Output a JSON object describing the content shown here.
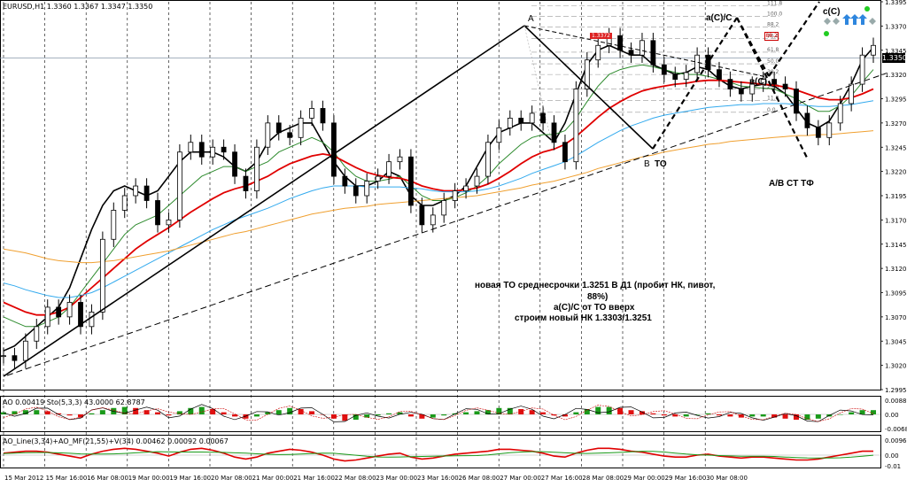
{
  "window": {
    "title_label": "EURUSD,H1  1.3360 1.3367 1.3347 1.3350",
    "current_price": "1.3350"
  },
  "colors": {
    "background": "#ffffff",
    "up_candle": "#000000",
    "down_candle": "#000000",
    "ma_black": "#000000",
    "ma_green": "#2e8b2e",
    "ma_red": "#e00000",
    "ma_blue": "#33aaee",
    "ma_orange": "#f0a030",
    "ao_up": "#1a9a1a",
    "ao_down": "#e01010"
  },
  "chart_data": {
    "type": "line",
    "title": "EURUSD,H1",
    "ohlc_readout": {
      "open": 1.336,
      "high": 1.3367,
      "low": 1.3347,
      "close": 1.335
    },
    "y_ticks": [
      "1.3395",
      "1.3370",
      "1.3345",
      "1.3320",
      "1.3295",
      "1.3270",
      "1.3245",
      "1.3220",
      "1.3195",
      "1.3170",
      "1.3145",
      "1.3120",
      "1.3095",
      "1.3070",
      "1.3045",
      "1.3020",
      "1.2995"
    ],
    "ylim": [
      1.2995,
      1.3395
    ],
    "x_ticks": [
      "15 Mar 2012",
      "15 Mar 16:00",
      "16 Mar 08:00",
      "19 Mar 00:00",
      "19 Mar 16:00",
      "20 Mar 08:00",
      "21 Mar 00:00",
      "21 Mar 16:00",
      "22 Mar 08:00",
      "23 Mar 00:00",
      "23 Mar 16:00",
      "26 Mar 08:00",
      "27 Mar 00:00",
      "27 Mar 16:00",
      "28 Mar 08:00",
      "29 Mar 00:00",
      "29 Mar 16:00",
      "30 Mar 08:00"
    ],
    "close_series": [
      1.303,
      1.3025,
      1.3045,
      1.306,
      1.308,
      1.307,
      1.3085,
      1.306,
      1.3075,
      1.315,
      1.318,
      1.3195,
      1.3205,
      1.319,
      1.3165,
      1.317,
      1.324,
      1.325,
      1.3235,
      1.3245,
      1.324,
      1.3215,
      1.32,
      1.3245,
      1.327,
      1.326,
      1.3255,
      1.3275,
      1.3285,
      1.327,
      1.3215,
      1.3205,
      1.3195,
      1.321,
      1.3215,
      1.323,
      1.3235,
      1.3185,
      1.3165,
      1.3175,
      1.319,
      1.32,
      1.3205,
      1.3215,
      1.325,
      1.3265,
      1.3275,
      1.327,
      1.328,
      1.327,
      1.325,
      1.323,
      1.3305,
      1.3335,
      1.335,
      1.336,
      1.3345,
      1.334,
      1.3355,
      1.333,
      1.332,
      1.3315,
      1.3322,
      1.334,
      1.3325,
      1.3315,
      1.3305,
      1.33,
      1.331,
      1.3315,
      1.331,
      1.3305,
      1.328,
      1.3265,
      1.3255,
      1.327,
      1.329,
      1.331,
      1.334,
      1.335
    ],
    "ma_series": [
      {
        "color": "black",
        "values": [
          1.3035,
          1.304,
          1.305,
          1.306,
          1.307,
          1.308,
          1.31,
          1.313,
          1.316,
          1.3185,
          1.32,
          1.3205,
          1.32,
          1.3195,
          1.32,
          1.3215,
          1.323,
          1.324,
          1.324,
          1.324,
          1.3235,
          1.3225,
          1.322,
          1.323,
          1.325,
          1.326,
          1.3265,
          1.327,
          1.327,
          1.325,
          1.323,
          1.3215,
          1.3205,
          1.3205,
          1.321,
          1.322,
          1.3215,
          1.3195,
          1.3185,
          1.3185,
          1.319,
          1.3195,
          1.3205,
          1.3225,
          1.3245,
          1.326,
          1.3265,
          1.327,
          1.327,
          1.326,
          1.325,
          1.327,
          1.33,
          1.333,
          1.3345,
          1.335,
          1.3345,
          1.334,
          1.334,
          1.333,
          1.3325,
          1.332,
          1.3322,
          1.3328,
          1.3325,
          1.3315,
          1.3308,
          1.3305,
          1.3308,
          1.331,
          1.3308,
          1.33,
          1.3285,
          1.327,
          1.3265,
          1.3272,
          1.329,
          1.331,
          1.3335,
          1.3348
        ]
      },
      {
        "color": "green",
        "values": [
          1.307,
          1.3065,
          1.306,
          1.306,
          1.3065,
          1.307,
          1.308,
          1.3095,
          1.311,
          1.3125,
          1.314,
          1.3155,
          1.3165,
          1.317,
          1.3175,
          1.3185,
          1.3195,
          1.3205,
          1.3215,
          1.322,
          1.3225,
          1.3225,
          1.322,
          1.3225,
          1.323,
          1.324,
          1.3245,
          1.325,
          1.3255,
          1.325,
          1.324,
          1.3225,
          1.3215,
          1.321,
          1.321,
          1.3212,
          1.3215,
          1.3205,
          1.3195,
          1.319,
          1.319,
          1.3193,
          1.3198,
          1.3205,
          1.3215,
          1.3228,
          1.3238,
          1.3248,
          1.3255,
          1.3258,
          1.3258,
          1.3262,
          1.3275,
          1.3292,
          1.3308,
          1.332,
          1.3325,
          1.3328,
          1.333,
          1.3328,
          1.3325,
          1.3322,
          1.332,
          1.332,
          1.3318,
          1.3315,
          1.3312,
          1.3308,
          1.3307,
          1.3306,
          1.3305,
          1.33,
          1.3295,
          1.3288,
          1.3282,
          1.3282,
          1.3288,
          1.3298,
          1.3312,
          1.3325
        ]
      },
      {
        "color": "red",
        "values": [
          1.3085,
          1.308,
          1.3075,
          1.3072,
          1.3072,
          1.3075,
          1.308,
          1.309,
          1.31,
          1.311,
          1.312,
          1.313,
          1.314,
          1.3148,
          1.3155,
          1.3162,
          1.317,
          1.3178,
          1.3185,
          1.3192,
          1.3198,
          1.3202,
          1.3205,
          1.321,
          1.3215,
          1.3222,
          1.3228,
          1.3232,
          1.3236,
          1.3238,
          1.3236,
          1.323,
          1.3224,
          1.3219,
          1.3216,
          1.3214,
          1.3213,
          1.321,
          1.3205,
          1.3202,
          1.32,
          1.32,
          1.3201,
          1.3203,
          1.3207,
          1.3213,
          1.322,
          1.3228,
          1.3235,
          1.324,
          1.3243,
          1.3248,
          1.3256,
          1.3266,
          1.3276,
          1.3285,
          1.3292,
          1.3298,
          1.3303,
          1.3306,
          1.3308,
          1.331,
          1.3311,
          1.3313,
          1.3314,
          1.3314,
          1.3313,
          1.3312,
          1.3311,
          1.331,
          1.3309,
          1.3307,
          1.3304,
          1.33,
          1.3296,
          1.3294,
          1.3294,
          1.3296,
          1.33,
          1.3305
        ]
      },
      {
        "color": "blue",
        "values": [
          1.3105,
          1.3102,
          1.3098,
          1.3095,
          1.3092,
          1.309,
          1.309,
          1.3092,
          1.3095,
          1.31,
          1.3106,
          1.3112,
          1.3118,
          1.3124,
          1.313,
          1.3136,
          1.3142,
          1.3148,
          1.3154,
          1.316,
          1.3165,
          1.317,
          1.3174,
          1.3178,
          1.3182,
          1.3187,
          1.3192,
          1.3196,
          1.32,
          1.3203,
          1.3205,
          1.3205,
          1.3205,
          1.3204,
          1.3204,
          1.3204,
          1.3204,
          1.3203,
          1.3202,
          1.32,
          1.3199,
          1.3199,
          1.3199,
          1.32,
          1.3202,
          1.3205,
          1.3209,
          1.3213,
          1.3218,
          1.3222,
          1.3226,
          1.323,
          1.3236,
          1.3243,
          1.325,
          1.3256,
          1.3262,
          1.3267,
          1.3271,
          1.3275,
          1.3278,
          1.328,
          1.3282,
          1.3284,
          1.3286,
          1.3287,
          1.3288,
          1.3289,
          1.3289,
          1.329,
          1.329,
          1.329,
          1.3289,
          1.3288,
          1.3287,
          1.3287,
          1.3288,
          1.3289,
          1.3291,
          1.3293
        ]
      },
      {
        "color": "orange",
        "values": [
          1.314,
          1.3138,
          1.3136,
          1.3133,
          1.313,
          1.3128,
          1.3127,
          1.3126,
          1.3126,
          1.3127,
          1.3128,
          1.313,
          1.3132,
          1.3134,
          1.3136,
          1.3138,
          1.3141,
          1.3144,
          1.3147,
          1.315,
          1.3153,
          1.3156,
          1.3158,
          1.3161,
          1.3164,
          1.3167,
          1.317,
          1.3173,
          1.3176,
          1.3178,
          1.318,
          1.3182,
          1.3183,
          1.3184,
          1.3186,
          1.3187,
          1.3188,
          1.3189,
          1.319,
          1.3191,
          1.3192,
          1.3193,
          1.3194,
          1.3195,
          1.3197,
          1.3199,
          1.3201,
          1.3203,
          1.3206,
          1.3208,
          1.321,
          1.3213,
          1.3216,
          1.3219,
          1.3223,
          1.3226,
          1.3229,
          1.3232,
          1.3235,
          1.3237,
          1.324,
          1.3242,
          1.3244,
          1.3246,
          1.3248,
          1.3249,
          1.3251,
          1.3252,
          1.3253,
          1.3254,
          1.3255,
          1.3256,
          1.3257,
          1.3257,
          1.3258,
          1.3258,
          1.3259,
          1.326,
          1.3261,
          1.3262
        ]
      }
    ],
    "ao_panel": {
      "label": "AO 0.00419  Sto(5,3,3) 43.0000 62.8787",
      "y_ticks": [
        "0.0088",
        "0.00",
        "-0.00689"
      ],
      "values": [
        0.002,
        0.003,
        0.004,
        0.004,
        0.003,
        0.001,
        -0.001,
        -0.003,
        0.001,
        0.004,
        0.006,
        0.007,
        0.006,
        0.004,
        0.002,
        -0.001,
        0.003,
        0.006,
        0.007,
        0.005,
        0.002,
        -0.002,
        -0.004,
        -0.002,
        0.002,
        0.004,
        0.006,
        0.005,
        0.003,
        0.0,
        -0.004,
        -0.006,
        -0.005,
        -0.003,
        -0.001,
        0.001,
        0.002,
        -0.002,
        -0.004,
        -0.003,
        -0.001,
        0.001,
        0.002,
        0.003,
        0.004,
        0.006,
        0.006,
        0.005,
        0.004,
        0.002,
        -0.001,
        -0.002,
        0.002,
        0.005,
        0.007,
        0.007,
        0.006,
        0.004,
        0.003,
        0.001,
        -0.001,
        -0.002,
        -0.002,
        0.0,
        0.001,
        -0.001,
        -0.002,
        -0.003,
        -0.002,
        -0.002,
        -0.003,
        -0.004,
        -0.005,
        -0.005,
        -0.004,
        -0.002,
        0.0,
        0.002,
        0.004,
        0.004
      ]
    },
    "ao_line_panel": {
      "label": "AO_Line(3,34)+AO_MF(21,55)+V(34) 0.00462 0.00092 0.00067",
      "y_ticks": [
        "0.00961",
        "0.00",
        "-0.01"
      ]
    }
  },
  "annotations": {
    "wave_A": "A",
    "wave_B": "B",
    "wave_B_TO": "TO",
    "wave_aC": "a(C)/C",
    "wave_bC": "в(C)",
    "wave_cC": "c(C)",
    "target": "A/B CT TФ",
    "level_box": "1.3372",
    "sig_box": "88.2",
    "note_line1": "новая ТО среднесрочки 1.3251 В Д1 (пробит НК, пивот,",
    "note_line2": "88%)",
    "note_line3": "a(C)/C от ТО вверх",
    "note_line4": "строим новый НК 1.3303/1.3251"
  },
  "fib_levels": [
    {
      "label": "111.8",
      "price": 1.3391
    },
    {
      "label": "100.0",
      "price": 1.338
    },
    {
      "label": "88.2",
      "price": 1.3369
    },
    {
      "label": "76.4",
      "price": 1.3357
    },
    {
      "label": "61.8",
      "price": 1.3343
    },
    {
      "label": "50.0",
      "price": 1.3331
    },
    {
      "label": "38.2",
      "price": 1.332
    },
    {
      "label": "23.6",
      "price": 1.3305
    },
    {
      "label": "11.8",
      "price": 1.3293
    },
    {
      "label": "0.0",
      "price": 1.3281
    }
  ]
}
